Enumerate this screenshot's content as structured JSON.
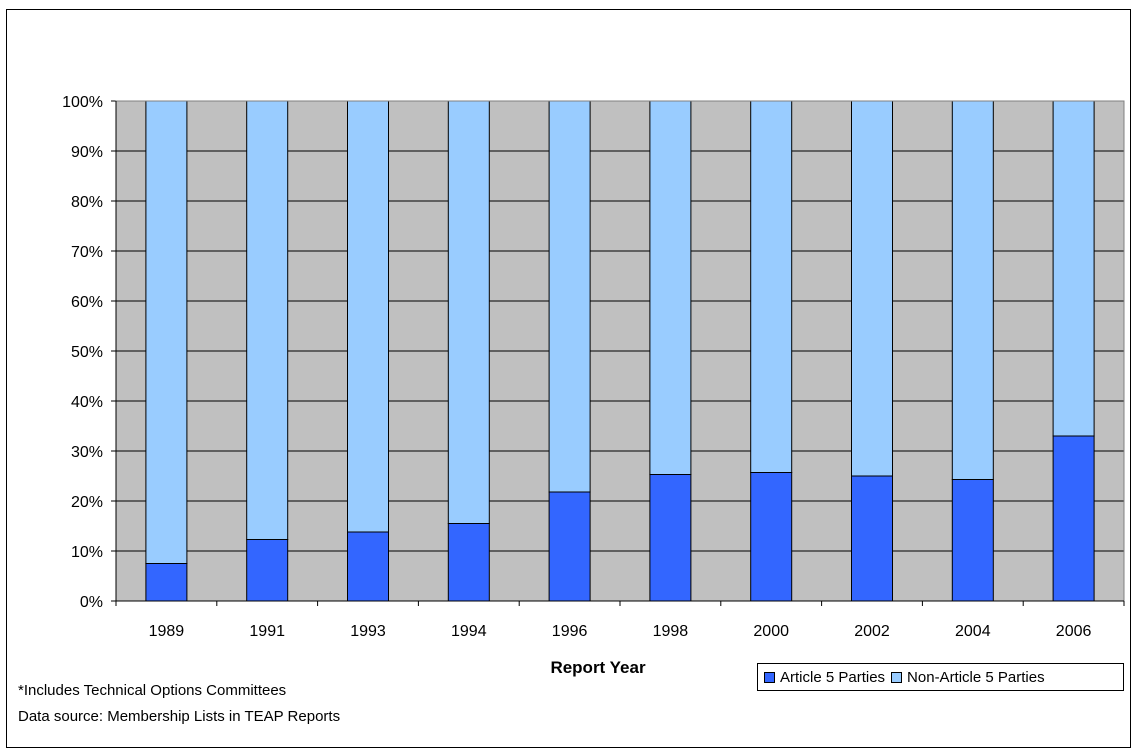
{
  "chart_data": {
    "type": "bar",
    "stacked": true,
    "percent_stacked": true,
    "categories": [
      "1989",
      "1991",
      "1993",
      "1994",
      "1996",
      "1998",
      "2000",
      "2002",
      "2004",
      "2006"
    ],
    "series": [
      {
        "name": "Article 5 Parties",
        "color": "#3366FF",
        "values": [
          7.5,
          12.3,
          13.8,
          15.5,
          21.8,
          25.3,
          25.7,
          25.0,
          24.3,
          33.0
        ]
      },
      {
        "name": "Non-Article 5 Parties",
        "color": "#99CCFF",
        "values": [
          92.5,
          87.7,
          86.2,
          84.5,
          78.2,
          74.7,
          74.3,
          75.0,
          75.7,
          67.0
        ]
      }
    ],
    "y_ticks": [
      "0%",
      "10%",
      "20%",
      "30%",
      "40%",
      "50%",
      "60%",
      "70%",
      "80%",
      "90%",
      "100%"
    ],
    "ylim": [
      0,
      100
    ],
    "xlabel": "Report Year",
    "ylabel": "",
    "grid": true,
    "plot_background": "#C0C0C0",
    "legend_position": "bottom-right"
  },
  "notes": {
    "line1": "*Includes Technical Options Committees",
    "line2": "Data source: Membership Lists in TEAP Reports"
  }
}
